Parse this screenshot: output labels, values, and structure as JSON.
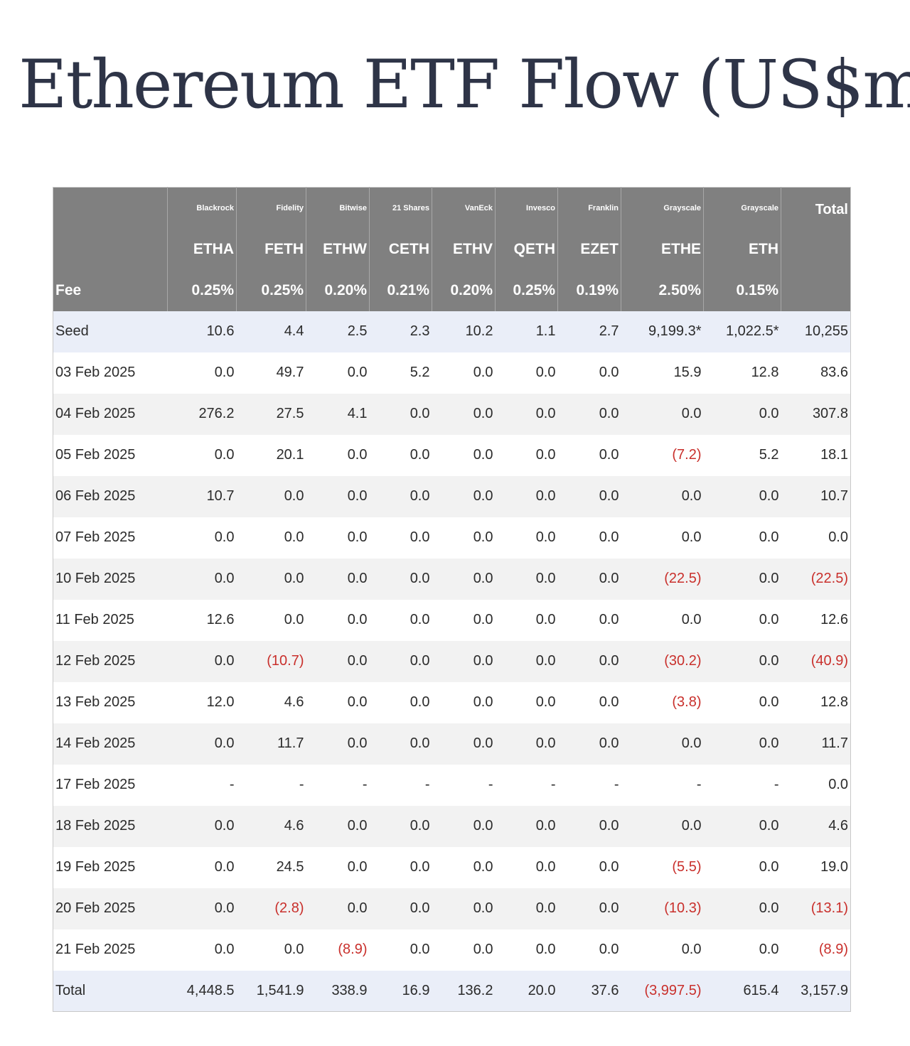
{
  "title": "Ethereum ETF Flow (US$m)",
  "table": {
    "issuers": [
      "Blackrock",
      "Fidelity",
      "Bitwise",
      "21 Shares",
      "VanEck",
      "Invesco",
      "Franklin",
      "Grayscale",
      "Grayscale"
    ],
    "total_label": "Total",
    "tickers": [
      "ETHA",
      "FETH",
      "ETHW",
      "CETH",
      "ETHV",
      "QETH",
      "EZET",
      "ETHE",
      "ETH"
    ],
    "fee_label": "Fee",
    "fees": [
      "0.25%",
      "0.25%",
      "0.20%",
      "0.21%",
      "0.20%",
      "0.25%",
      "0.19%",
      "2.50%",
      "0.15%"
    ],
    "rows": [
      {
        "label": "Seed",
        "values": [
          "10.6",
          "4.4",
          "2.5",
          "2.3",
          "10.2",
          "1.1",
          "2.7",
          "9,199.3*",
          "1,022.5*",
          "10,255"
        ]
      },
      {
        "label": "03 Feb 2025",
        "values": [
          "0.0",
          "49.7",
          "0.0",
          "5.2",
          "0.0",
          "0.0",
          "0.0",
          "15.9",
          "12.8",
          "83.6"
        ]
      },
      {
        "label": "04 Feb 2025",
        "values": [
          "276.2",
          "27.5",
          "4.1",
          "0.0",
          "0.0",
          "0.0",
          "0.0",
          "0.0",
          "0.0",
          "307.8"
        ]
      },
      {
        "label": "05 Feb 2025",
        "values": [
          "0.0",
          "20.1",
          "0.0",
          "0.0",
          "0.0",
          "0.0",
          "0.0",
          "(7.2)",
          "5.2",
          "18.1"
        ]
      },
      {
        "label": "06 Feb 2025",
        "values": [
          "10.7",
          "0.0",
          "0.0",
          "0.0",
          "0.0",
          "0.0",
          "0.0",
          "0.0",
          "0.0",
          "10.7"
        ]
      },
      {
        "label": "07 Feb 2025",
        "values": [
          "0.0",
          "0.0",
          "0.0",
          "0.0",
          "0.0",
          "0.0",
          "0.0",
          "0.0",
          "0.0",
          "0.0"
        ]
      },
      {
        "label": "10 Feb 2025",
        "values": [
          "0.0",
          "0.0",
          "0.0",
          "0.0",
          "0.0",
          "0.0",
          "0.0",
          "(22.5)",
          "0.0",
          "(22.5)"
        ]
      },
      {
        "label": "11 Feb 2025",
        "values": [
          "12.6",
          "0.0",
          "0.0",
          "0.0",
          "0.0",
          "0.0",
          "0.0",
          "0.0",
          "0.0",
          "12.6"
        ]
      },
      {
        "label": "12 Feb 2025",
        "values": [
          "0.0",
          "(10.7)",
          "0.0",
          "0.0",
          "0.0",
          "0.0",
          "0.0",
          "(30.2)",
          "0.0",
          "(40.9)"
        ]
      },
      {
        "label": "13 Feb 2025",
        "values": [
          "12.0",
          "4.6",
          "0.0",
          "0.0",
          "0.0",
          "0.0",
          "0.0",
          "(3.8)",
          "0.0",
          "12.8"
        ]
      },
      {
        "label": "14 Feb 2025",
        "values": [
          "0.0",
          "11.7",
          "0.0",
          "0.0",
          "0.0",
          "0.0",
          "0.0",
          "0.0",
          "0.0",
          "11.7"
        ]
      },
      {
        "label": "17 Feb 2025",
        "values": [
          "-",
          "-",
          "-",
          "-",
          "-",
          "-",
          "-",
          "-",
          "-",
          "0.0"
        ]
      },
      {
        "label": "18 Feb 2025",
        "values": [
          "0.0",
          "4.6",
          "0.0",
          "0.0",
          "0.0",
          "0.0",
          "0.0",
          "0.0",
          "0.0",
          "4.6"
        ]
      },
      {
        "label": "19 Feb 2025",
        "values": [
          "0.0",
          "24.5",
          "0.0",
          "0.0",
          "0.0",
          "0.0",
          "0.0",
          "(5.5)",
          "0.0",
          "19.0"
        ]
      },
      {
        "label": "20 Feb 2025",
        "values": [
          "0.0",
          "(2.8)",
          "0.0",
          "0.0",
          "0.0",
          "0.0",
          "0.0",
          "(10.3)",
          "0.0",
          "(13.1)"
        ]
      },
      {
        "label": "21 Feb 2025",
        "values": [
          "0.0",
          "0.0",
          "(8.9)",
          "0.0",
          "0.0",
          "0.0",
          "0.0",
          "0.0",
          "0.0",
          "(8.9)"
        ]
      },
      {
        "label": "Total",
        "values": [
          "4,448.5",
          "1,541.9",
          "338.9",
          "16.9",
          "136.2",
          "20.0",
          "37.6",
          "(3,997.5)",
          "615.4",
          "3,157.9"
        ]
      }
    ],
    "negative_color": "#c9302c",
    "header_color": "#808080",
    "highlight_row_color": "#eaeef8"
  }
}
